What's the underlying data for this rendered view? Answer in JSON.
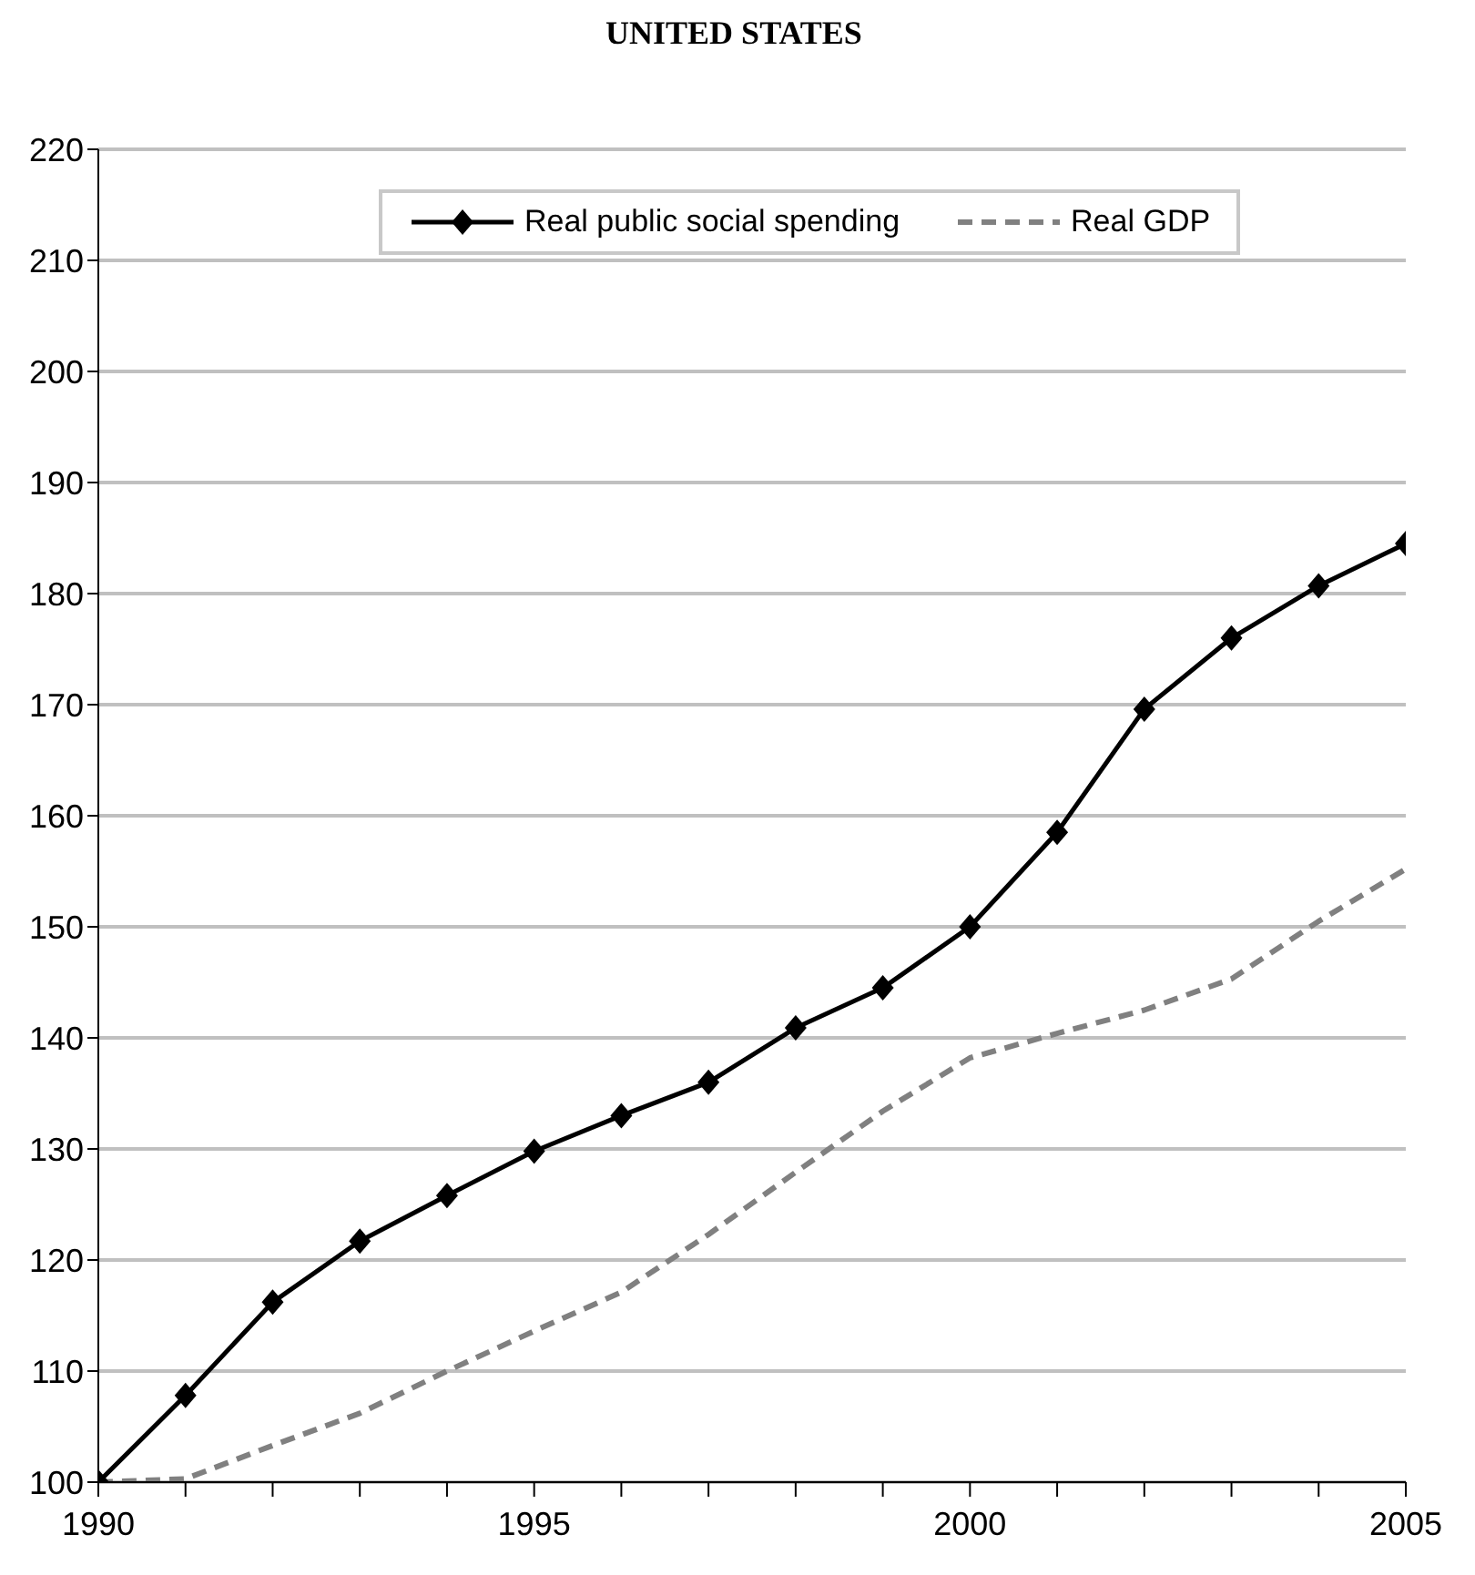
{
  "chart_data": {
    "type": "line",
    "title": "UNITED STATES",
    "x": [
      1990,
      1991,
      1992,
      1993,
      1994,
      1995,
      1996,
      1997,
      1998,
      1999,
      2000,
      2001,
      2002,
      2003,
      2004,
      2005
    ],
    "series": [
      {
        "name": "Real public social spending",
        "color": "#000000",
        "marker": "diamond",
        "line_style": "solid",
        "values": [
          100,
          107.8,
          116.2,
          121.7,
          125.8,
          129.8,
          133,
          136,
          140.9,
          144.5,
          150,
          158.5,
          169.6,
          176,
          180.7,
          184.5
        ]
      },
      {
        "name": "Real GDP",
        "color": "#808080",
        "marker": "none",
        "line_style": "dashed",
        "values": [
          100,
          100.3,
          103.3,
          106.2,
          110,
          113.6,
          117.1,
          122.3,
          127.9,
          133.4,
          138.2,
          140.4,
          142.5,
          145.3,
          150.5,
          155.2
        ]
      }
    ],
    "xlim": [
      1990,
      2005
    ],
    "xticks": [
      1990,
      {
        "value": 1991,
        "label": null
      },
      {
        "value": 1992,
        "label": null
      },
      {
        "value": 1993,
        "label": null
      },
      {
        "value": 1994,
        "label": null
      },
      1995,
      {
        "value": 1996,
        "label": null
      },
      {
        "value": 1997,
        "label": null
      },
      {
        "value": 1998,
        "label": null
      },
      {
        "value": 1999,
        "label": null
      },
      2000,
      {
        "value": 2001,
        "label": null
      },
      {
        "value": 2002,
        "label": null
      },
      {
        "value": 2003,
        "label": null
      },
      {
        "value": 2004,
        "label": null
      },
      2005
    ],
    "ylim": [
      100,
      220
    ],
    "yticks": [
      100,
      110,
      120,
      130,
      140,
      150,
      160,
      170,
      180,
      190,
      200,
      210,
      220
    ],
    "grid": "y",
    "legend": "top"
  }
}
